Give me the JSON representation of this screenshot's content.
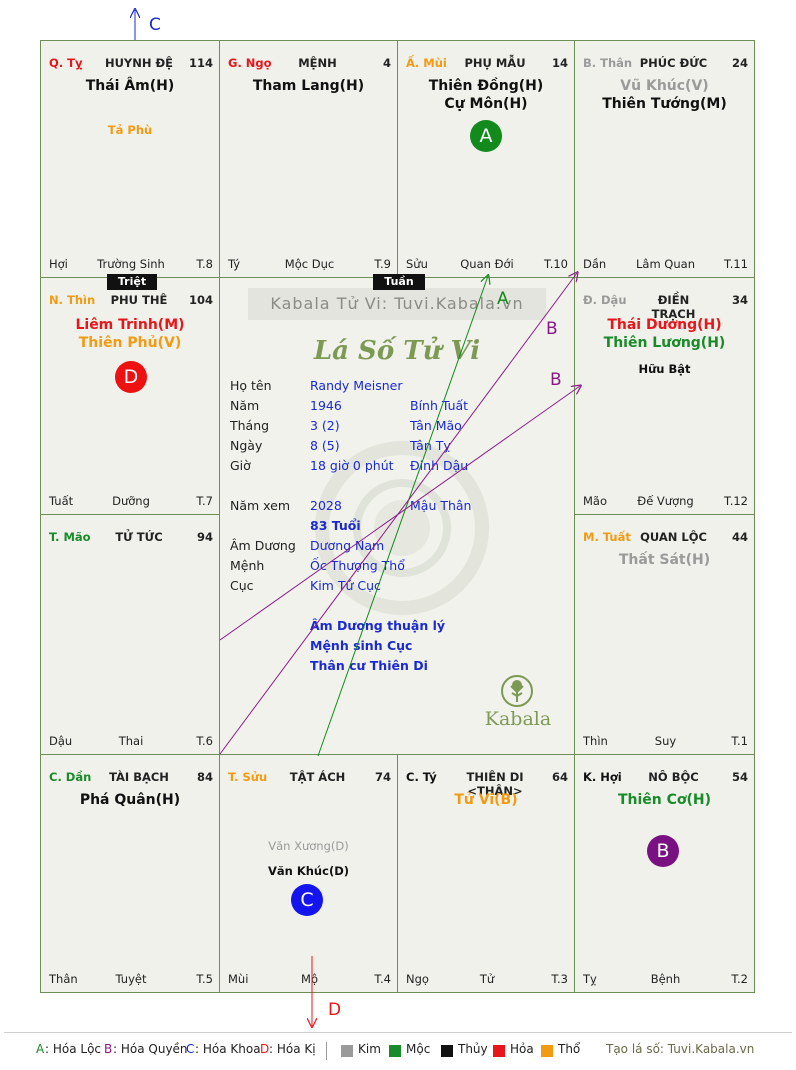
{
  "cells": [
    {
      "id": "ty",
      "can": "Q. Tỵ",
      "canColor": "#e8161b",
      "ten": "HUYNH ĐỆ",
      "num": "114",
      "main": [
        {
          "t": "Thái Âm(H)",
          "c": "#111"
        }
      ],
      "minor": [
        {
          "t": "Tả Phù",
          "c": "#f29b12"
        }
      ],
      "ft": {
        "l": "Hợi",
        "m": "Trường Sinh",
        "r": "T.8"
      }
    },
    {
      "id": "ngo",
      "can": "G. Ngọ",
      "canColor": "#e8161b",
      "ten": "MỆNH",
      "num": "4",
      "main": [
        {
          "t": "Tham Lang(H)",
          "c": "#111"
        }
      ],
      "minor": [],
      "ft": {
        "l": "Tý",
        "m": "Mộc Dục",
        "r": "T.9"
      }
    },
    {
      "id": "mui",
      "can": "Ấ. Mùi",
      "canColor": "#f29b12",
      "ten": "PHỤ MẪU",
      "num": "14",
      "main": [
        {
          "t": "Thiên Đồng(H)",
          "c": "#111"
        },
        {
          "t": "Cự Môn(H)",
          "c": "#111"
        }
      ],
      "minor": [],
      "ft": {
        "l": "Sửu",
        "m": "Quan Đới",
        "r": "T.10"
      }
    },
    {
      "id": "than",
      "can": "B. Thân",
      "canColor": "#9a9a9a",
      "ten": "PHÚC ĐỨC",
      "num": "24",
      "main": [
        {
          "t": "Vũ Khúc(V)",
          "c": "#9a9a9a"
        },
        {
          "t": "Thiên Tướng(M)",
          "c": "#111"
        }
      ],
      "minor": [],
      "ft": {
        "l": "Dần",
        "m": "Lâm Quan",
        "r": "T.11"
      }
    },
    {
      "id": "thin",
      "can": "N. Thìn",
      "canColor": "#f29b12",
      "ten": "PHU THÊ",
      "num": "104",
      "main": [
        {
          "t": "Liêm Trinh(M)",
          "c": "#e8161b"
        },
        {
          "t": "Thiên Phủ(V)",
          "c": "#f29b12"
        }
      ],
      "minor": [],
      "ft": {
        "l": "Tuất",
        "m": "Dưỡng",
        "r": "T.7"
      }
    },
    {
      "id": "dau",
      "can": "Đ. Dậu",
      "canColor": "#9a9a9a",
      "ten": "ĐIỀN TRẠCH",
      "num": "34",
      "main": [
        {
          "t": "Thái Dương(H)",
          "c": "#e8161b"
        },
        {
          "t": "Thiên Lương(H)",
          "c": "#1a8a2a"
        }
      ],
      "minor": [
        {
          "t": "Hữu Bật",
          "c": "#111"
        }
      ],
      "ft": {
        "l": "Mão",
        "m": "Đế Vượng",
        "r": "T.12"
      }
    },
    {
      "id": "mao",
      "can": "T. Mão",
      "canColor": "#1a8a2a",
      "ten": "TỬ TỨC",
      "num": "94",
      "main": [],
      "minor": [],
      "ft": {
        "l": "Dậu",
        "m": "Thai",
        "r": "T.6"
      }
    },
    {
      "id": "tuat",
      "can": "M. Tuất",
      "canColor": "#f29b12",
      "ten": "QUAN LỘC",
      "num": "44",
      "main": [
        {
          "t": "Thất Sát(H)",
          "c": "#9a9a9a"
        }
      ],
      "minor": [],
      "ft": {
        "l": "Thìn",
        "m": "Suy",
        "r": "T.1"
      }
    },
    {
      "id": "dan",
      "can": "C. Dần",
      "canColor": "#1a8a2a",
      "ten": "TÀI BẠCH",
      "num": "84",
      "main": [
        {
          "t": "Phá Quân(H)",
          "c": "#111"
        }
      ],
      "minor": [],
      "ft": {
        "l": "Thân",
        "m": "Tuyệt",
        "r": "T.5"
      }
    },
    {
      "id": "suu",
      "can": "T. Sửu",
      "canColor": "#f29b12",
      "ten": "TẬT ÁCH",
      "num": "74",
      "main": [],
      "minor": [
        {
          "t": "Văn Xương(D)",
          "c": "#9a9a9a"
        },
        {
          "t": "Văn Khúc(D)",
          "c": "#111"
        }
      ],
      "ft": {
        "l": "Mùi",
        "m": "Mộ",
        "r": "T.4"
      }
    },
    {
      "id": "ty2",
      "can": "C. Tý",
      "canColor": "#111",
      "ten": "THIÊN DI <THÂN>",
      "num": "64",
      "main": [
        {
          "t": "Tử Vi(B)",
          "c": "#f29b12"
        }
      ],
      "minor": [],
      "ft": {
        "l": "Ngọ",
        "m": "Tử",
        "r": "T.3"
      }
    },
    {
      "id": "hoi",
      "can": "K. Hợi",
      "canColor": "#111",
      "ten": "NÔ BỘC",
      "num": "54",
      "main": [
        {
          "t": "Thiên Cơ(H)",
          "c": "#1a8a2a"
        }
      ],
      "minor": [],
      "ft": {
        "l": "Tỵ",
        "m": "Bệnh",
        "r": "T.2"
      }
    }
  ],
  "markers": {
    "a": "A",
    "b": "B",
    "c": "C",
    "d": "D"
  },
  "arrows": {
    "a": "A",
    "b1": "B",
    "b2": "B",
    "c": "C",
    "d": "D"
  },
  "tags": {
    "triet": "Triệt",
    "tuan": "Tuần"
  },
  "center": {
    "watermark": "Kabala Tử Vi: Tuvi.Kabala.vn",
    "title": "Lá Số Tử Vi",
    "rows": [
      {
        "k": "Họ tên",
        "v": "Randy Meisner",
        "e": ""
      },
      {
        "k": "Năm",
        "v": "1946",
        "e": "Bính Tuất"
      },
      {
        "k": "Tháng",
        "v": "3  (2)",
        "e": "Tân Mão"
      },
      {
        "k": "Ngày",
        "v": "8  (5)",
        "e": "Tân Tỵ"
      },
      {
        "k": "Giờ",
        "v": "18 giờ 0 phút",
        "e": "Đinh Dậu"
      }
    ],
    "namxem": {
      "k": "Năm xem",
      "v": "2028",
      "e": "Mậu Thân"
    },
    "tuoi": "83 Tuổi",
    "rows2": [
      {
        "k": "Âm Dương",
        "v": "Dương Nam"
      },
      {
        "k": "Mệnh",
        "v": "Ốc Thượng Thổ"
      },
      {
        "k": "Cục",
        "v": "Kim Tứ Cục"
      }
    ],
    "notes": [
      "Âm Dương thuận lý",
      "Mệnh sinh Cục",
      "Thân cư Thiên Di"
    ],
    "brand": "Kabala"
  },
  "legend": {
    "items": [
      {
        "k": "A",
        "t": ": Hóa Lộc",
        "c": "#1a8a2a"
      },
      {
        "k": "B",
        "t": ": Hóa Quyền",
        "c": "#8a1a8a"
      },
      {
        "k": "C",
        "t": ": Hóa Khoa",
        "c": "#1a2ad0"
      },
      {
        "k": "D",
        "t": ": Hóa Kị",
        "c": "#e8161b"
      }
    ],
    "elements": [
      {
        "t": "Kim",
        "c": "#9a9a9a"
      },
      {
        "t": "Mộc",
        "c": "#1a8a2a"
      },
      {
        "t": "Thủy",
        "c": "#111111"
      },
      {
        "t": "Hỏa",
        "c": "#e8161b"
      },
      {
        "t": "Thổ",
        "c": "#f29b12"
      }
    ],
    "site": "Tạo lá số: Tuvi.Kabala.vn"
  }
}
